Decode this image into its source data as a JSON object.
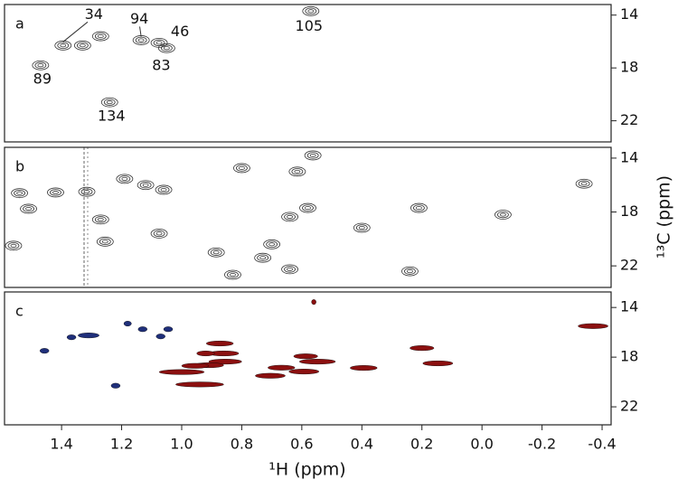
{
  "chart_data": [
    {
      "type": "contour",
      "title": "a",
      "xlim": [
        1.59,
        -0.43
      ],
      "ylim": [
        23.6,
        13.2
      ],
      "yticks": [
        14,
        18,
        22
      ],
      "series": [
        {
          "color": "#333333",
          "x": [
            1.395,
            1.33,
            1.27,
            1.135,
            1.075,
            1.05,
            1.47,
            1.24,
            0.57
          ],
          "y": [
            16.3,
            16.3,
            15.6,
            15.9,
            16.1,
            16.5,
            17.8,
            20.6,
            13.7
          ],
          "labels": [
            "34",
            null,
            null,
            "94",
            "46",
            "83",
            "89",
            "134",
            "105"
          ]
        }
      ]
    },
    {
      "type": "contour",
      "title": "b",
      "xlim": [
        1.59,
        -0.43
      ],
      "ylim": [
        23.6,
        13.2
      ],
      "yticks": [
        14,
        18,
        22
      ],
      "ylabel": "¹³C (ppm)",
      "series": [
        {
          "color": "#333333",
          "x": [
            1.51,
            1.316,
            1.54,
            1.42,
            1.19,
            1.12,
            1.06,
            1.255,
            1.27,
            0.563,
            0.8,
            0.885,
            0.83,
            0.64,
            0.7,
            0.58,
            0.4,
            0.64,
            -0.07,
            -0.34,
            0.21,
            0.615,
            0.24,
            0.73,
            1.56,
            1.075
          ],
          "y": [
            17.76,
            16.5,
            16.6,
            16.55,
            15.54,
            16.0,
            16.35,
            20.2,
            18.56,
            13.8,
            14.74,
            21.0,
            22.66,
            18.36,
            20.4,
            17.7,
            19.17,
            22.25,
            18.2,
            15.9,
            17.7,
            15.0,
            22.4,
            21.4,
            20.5,
            19.6
          ]
        }
      ]
    },
    {
      "type": "peaks",
      "title": "c",
      "xlim": [
        1.59,
        -0.43
      ],
      "ylim": [
        23.45,
        12.75
      ],
      "yticks": [
        14,
        18,
        22
      ],
      "xlabel": "¹H (ppm)",
      "xticks": [
        1.4,
        1.2,
        {
          "value": 1,
          "label": "1.0"
        },
        0.8,
        0.6,
        0.4,
        0.2,
        {
          "value": 0,
          "label": "0.0"
        },
        -0.2,
        -0.4
      ],
      "series": [
        {
          "color": "#1f2f7a",
          "x": [
            1.457,
            1.367,
            1.31,
            1.18,
            1.13,
            1.07,
            1.045,
            1.22
          ],
          "y": [
            17.49,
            16.4,
            16.25,
            15.3,
            15.75,
            16.33,
            15.75,
            20.3
          ],
          "x_widths": [
            0.03,
            0.03,
            0.07,
            0.025,
            0.03,
            0.03,
            0.03,
            0.03
          ]
        },
        {
          "color": "#8b1010",
          "x": [
            -0.37,
            0.873,
            0.86,
            0.92,
            1.0,
            0.94,
            0.855,
            0.91,
            0.955,
            0.705,
            0.668,
            0.587,
            0.548,
            0.593,
            0.394,
            0.2,
            0.147,
            0.56
          ],
          "y": [
            15.5,
            16.9,
            17.7,
            17.7,
            19.2,
            20.2,
            18.36,
            18.65,
            18.7,
            19.5,
            18.85,
            17.93,
            18.36,
            19.16,
            18.87,
            17.27,
            18.5,
            13.56
          ],
          "x_widths": [
            0.1,
            0.09,
            0.1,
            0.06,
            0.15,
            0.16,
            0.11,
            0.1,
            0.09,
            0.1,
            0.09,
            0.08,
            0.12,
            0.1,
            0.09,
            0.08,
            0.1,
            0.015
          ]
        }
      ]
    }
  ]
}
